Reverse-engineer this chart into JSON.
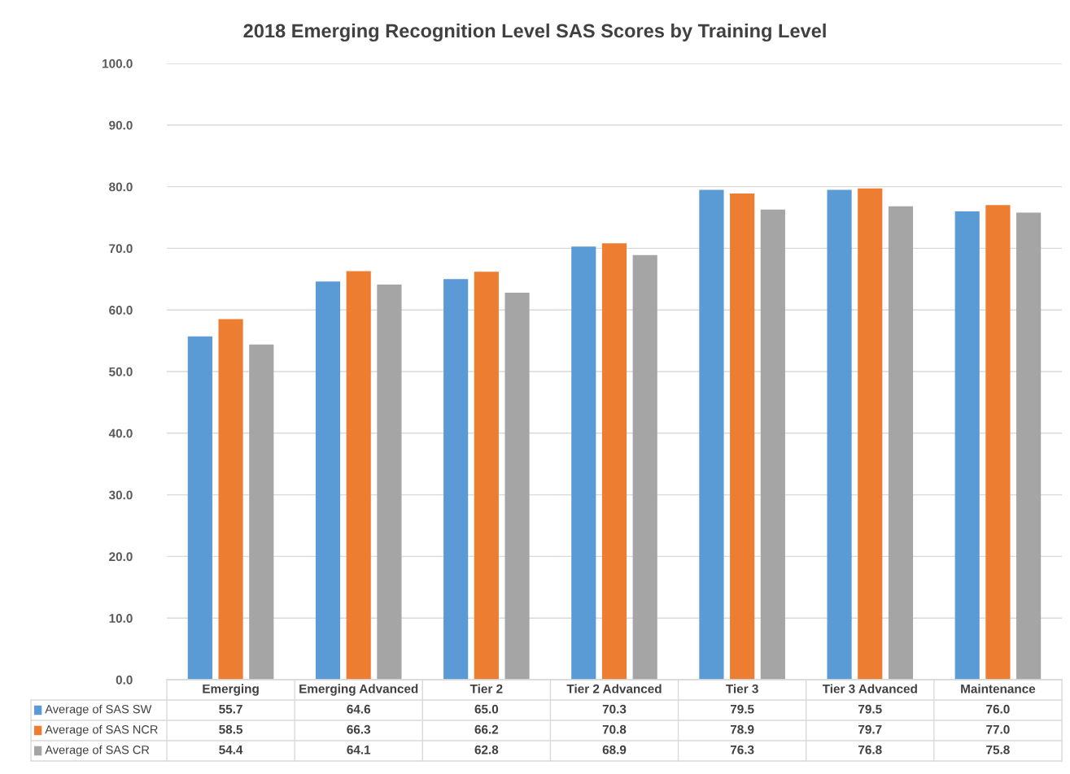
{
  "chart_data": {
    "type": "bar",
    "title": "2018 Emerging Recognition Level SAS Scores by Training Level",
    "categories": [
      "Emerging",
      "Emerging Advanced",
      "Tier 2",
      "Tier 2 Advanced",
      "Tier 3",
      "Tier 3 Advanced",
      "Maintenance"
    ],
    "series": [
      {
        "name": "Average of SAS SW",
        "color": "#5b9bd5",
        "values": [
          55.7,
          64.6,
          65.0,
          70.3,
          79.5,
          79.5,
          76.0
        ],
        "value_labels": [
          "55.7",
          "64.6",
          "65.0",
          "70.3",
          "79.5",
          "79.5",
          "76.0"
        ]
      },
      {
        "name": "Average of SAS NCR",
        "color": "#ed7d31",
        "values": [
          58.5,
          66.3,
          66.2,
          70.8,
          78.9,
          79.7,
          77.0
        ],
        "value_labels": [
          "58.5",
          "66.3",
          "66.2",
          "70.8",
          "78.9",
          "79.7",
          "77.0"
        ]
      },
      {
        "name": "Average of SAS CR",
        "color": "#a5a5a5",
        "values": [
          54.4,
          64.1,
          62.8,
          68.9,
          76.3,
          76.8,
          75.8
        ],
        "value_labels": [
          "54.4",
          "64.1",
          "62.8",
          "68.9",
          "76.3",
          "76.8",
          "75.8"
        ]
      }
    ],
    "ylim": [
      0,
      100
    ],
    "yticks": [
      {
        "value": 0,
        "label": "0.0"
      },
      {
        "value": 10,
        "label": "10.0"
      },
      {
        "value": 20,
        "label": "20.0"
      },
      {
        "value": 30,
        "label": "30.0"
      },
      {
        "value": 40,
        "label": "40.0"
      },
      {
        "value": 50,
        "label": "50.0"
      },
      {
        "value": 60,
        "label": "60.0"
      },
      {
        "value": 70,
        "label": "70.0"
      },
      {
        "value": 80,
        "label": "80.0"
      },
      {
        "value": 90,
        "label": "90.0"
      },
      {
        "value": 100,
        "label": "100.0"
      }
    ],
    "grid": "y",
    "legend": "bottom"
  }
}
